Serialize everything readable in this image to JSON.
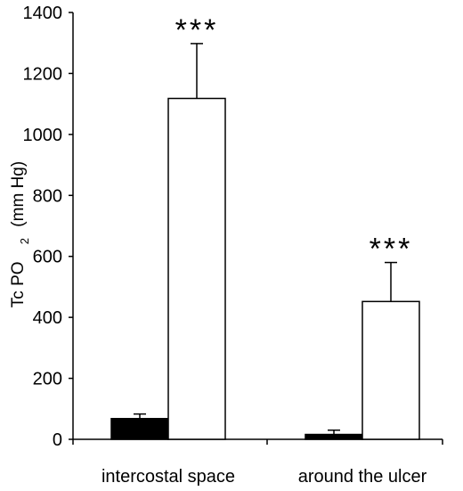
{
  "chart_data": {
    "type": "bar",
    "categories": [
      "intercostal space",
      "around the ulcer"
    ],
    "series": [
      {
        "color": "#000000",
        "values": [
          68,
          16
        ],
        "errors": [
          15,
          14
        ]
      },
      {
        "color": "#ffffff",
        "values": [
          1118,
          452
        ],
        "errors": [
          180,
          128
        ]
      }
    ],
    "ylabel_main": "Tc PO",
    "ylabel_sub": "2",
    "ylabel_unit": "(mm Hg)",
    "ylim": [
      0,
      1400
    ],
    "yticks": [
      0,
      200,
      400,
      600,
      800,
      1000,
      1200,
      1400
    ],
    "ytick_labels": [
      "0",
      "200",
      "400",
      "600",
      "800",
      "1000",
      "1200",
      "1400"
    ],
    "grid": false,
    "annotations": [
      {
        "category": 0,
        "series": 1,
        "text": "***"
      },
      {
        "category": 1,
        "series": 1,
        "text": "***"
      }
    ]
  }
}
